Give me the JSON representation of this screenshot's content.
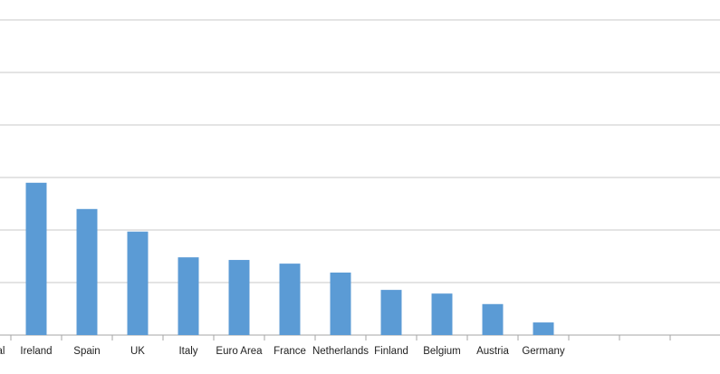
{
  "chart_data": {
    "type": "bar",
    "categories": [
      "Portugal",
      "Ireland",
      "Spain",
      "UK",
      "Italy",
      "Euro Area",
      "France",
      "Netherlands",
      "Finland",
      "Belgium",
      "Austria",
      "Germany",
      null,
      null,
      null
    ],
    "values": [
      null,
      2.9,
      2.4,
      1.97,
      1.48,
      1.43,
      1.36,
      1.19,
      0.86,
      0.79,
      0.59,
      0.24,
      null,
      null,
      null
    ],
    "color": "#5b9bd5",
    "ylim": [
      0,
      6
    ],
    "yticks": [
      0,
      1,
      2,
      3,
      4,
      5,
      6
    ],
    "grid": true
  }
}
